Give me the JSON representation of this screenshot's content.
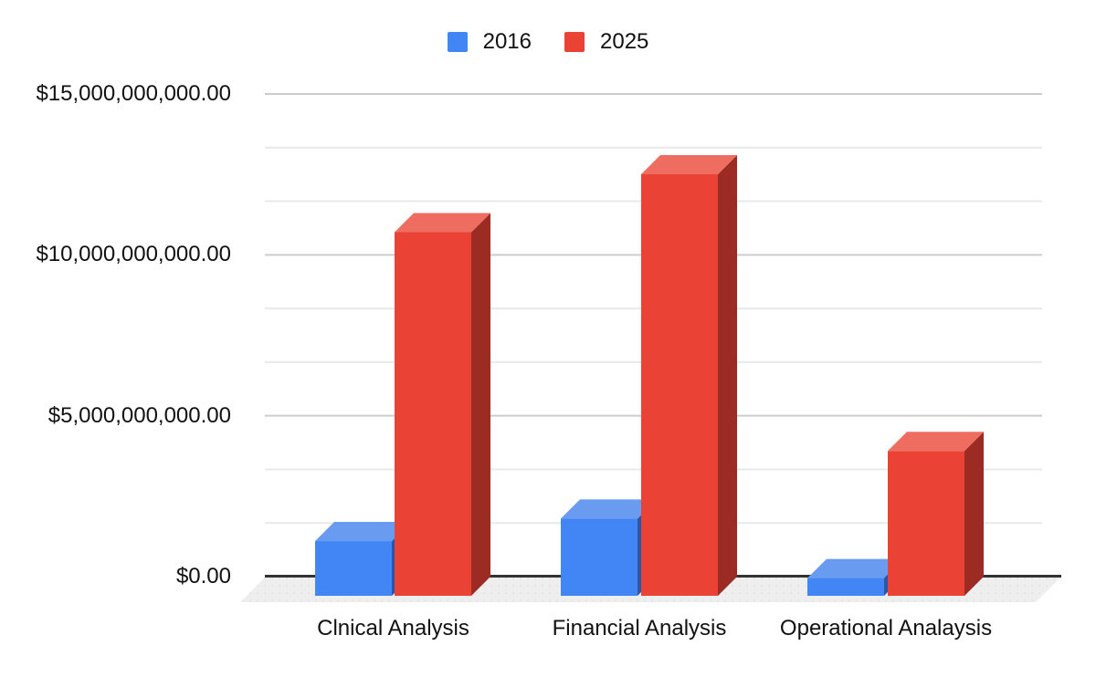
{
  "chart_data": {
    "type": "bar",
    "variant": "3d-column",
    "title": "",
    "categories": [
      "Clnical Analysis",
      "Financial Analysis",
      "Operational Analaysis"
    ],
    "series": [
      {
        "name": "2016",
        "values": [
          1700000000,
          2400000000,
          550000000
        ],
        "colors": {
          "front": "#4285F4",
          "top": "#699CF1",
          "side": "#2D57A6"
        }
      },
      {
        "name": "2025",
        "values": [
          11300000000,
          13100000000,
          4500000000
        ],
        "colors": {
          "front": "#EA4335",
          "top": "#EE6D60",
          "side": "#9C2C23"
        }
      }
    ],
    "ylim": [
      0,
      15000000000
    ],
    "y_major_step": 5000000000,
    "y_minor_per_major": 3,
    "y_tick_values": [
      0,
      5000000000,
      10000000000,
      15000000000
    ],
    "y_tick_labels": [
      "$0.00",
      "$5,000,000,000.00",
      "$10,000,000,000.00",
      "$15,000,000,000.00"
    ],
    "legend_position": "top",
    "grid": true,
    "style": {
      "background": "#ffffff",
      "text_color": "#111111",
      "axis_line_color": "#333333",
      "major_grid_color": "#cccccc",
      "minor_grid_color": "#e9e9e9",
      "floor_color": "#eeeeee",
      "floor_dot_color": "#e0e0e0"
    }
  }
}
